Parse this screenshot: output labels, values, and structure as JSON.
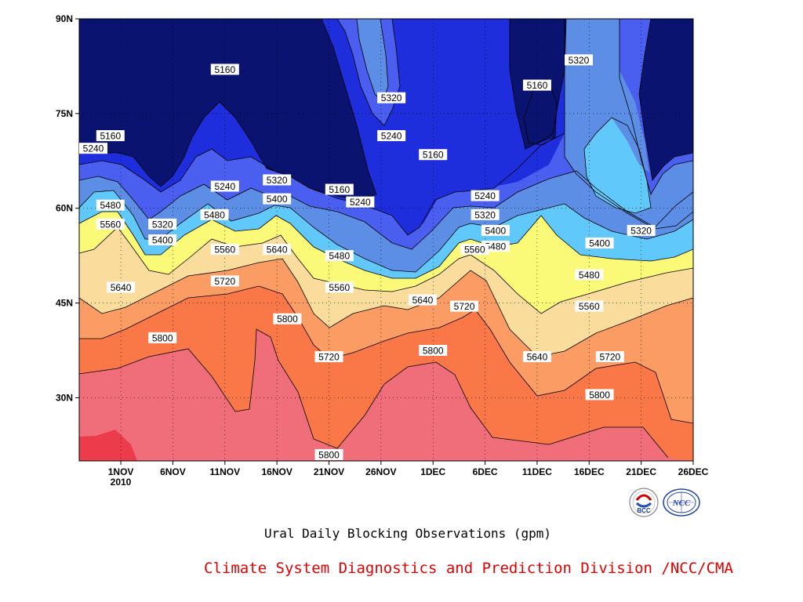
{
  "chart_data": {
    "type": "contour",
    "title": "Ural Daily Blocking Observations (gpm)",
    "credit": "Climate System Diagnostics and Prediction Division /NCC/CMA",
    "x_tick_labels": [
      "1NOV",
      "6NOV",
      "11NOV",
      "16NOV",
      "21NOV",
      "26NOV",
      "1DEC",
      "6DEC",
      "11DEC",
      "16DEC",
      "21DEC",
      "26DEC"
    ],
    "x_year_label": "2010",
    "x_range": [
      "2010-10-28",
      "2010-12-26"
    ],
    "y_tick_labels": [
      "90N",
      "75N",
      "60N",
      "45N",
      "30N"
    ],
    "y_ticks": [
      90,
      75,
      60,
      45,
      30
    ],
    "y_range": [
      20,
      90
    ],
    "grid": true,
    "contour_levels": [
      5160,
      5240,
      5320,
      5400,
      5480,
      5560,
      5640,
      5720,
      5800
    ],
    "colors": {
      "lt5160": "#0a1470",
      "5160": "#1e2edc",
      "5240": "#4a5ef0",
      "5320": "#5c8ee6",
      "5400": "#60c8fa",
      "5480": "#fafa78",
      "5560": "#fadc9c",
      "5640": "#fa9c64",
      "5720": "#fa7848",
      "5800": "#f06e7a",
      "5880": "#ec3c4c"
    },
    "contour_labels": [
      {
        "text": "5240",
        "date": "2010-10-28",
        "lat": 69.5
      },
      {
        "text": "5160",
        "date": "2010-10-31",
        "lat": 71.5
      },
      {
        "text": "5160",
        "date": "2010-11-11",
        "lat": 82
      },
      {
        "text": "5320",
        "date": "2010-11-27",
        "lat": 77.5
      },
      {
        "text": "5240",
        "date": "2010-11-27",
        "lat": 71.5
      },
      {
        "text": "5160",
        "date": "2010-12-01",
        "lat": 68.5
      },
      {
        "text": "5160",
        "date": "2010-12-11",
        "lat": 79.5
      },
      {
        "text": "5320",
        "date": "2010-12-15",
        "lat": 83.5
      },
      {
        "text": "5240",
        "date": "2010-11-11",
        "lat": 63.5
      },
      {
        "text": "5320",
        "date": "2010-11-16",
        "lat": 64.5
      },
      {
        "text": "5400",
        "date": "2010-11-16",
        "lat": 61.5
      },
      {
        "text": "5160",
        "date": "2010-11-22",
        "lat": 63
      },
      {
        "text": "5240",
        "date": "2010-11-24",
        "lat": 61
      },
      {
        "text": "5240",
        "date": "2010-12-06",
        "lat": 62
      },
      {
        "text": "5320",
        "date": "2010-12-06",
        "lat": 59
      },
      {
        "text": "5480",
        "date": "2010-10-31",
        "lat": 60.5
      },
      {
        "text": "5480",
        "date": "2010-11-10",
        "lat": 59
      },
      {
        "text": "5320",
        "date": "2010-11-05",
        "lat": 57.5
      },
      {
        "text": "5400",
        "date": "2010-11-05",
        "lat": 55
      },
      {
        "text": "5560",
        "date": "2010-10-31",
        "lat": 57.5
      },
      {
        "text": "5560",
        "date": "2010-11-11",
        "lat": 53.5
      },
      {
        "text": "5640",
        "date": "2010-11-16",
        "lat": 53.5
      },
      {
        "text": "5400",
        "date": "2010-12-07",
        "lat": 56.5
      },
      {
        "text": "5480",
        "date": "2010-12-07",
        "lat": 54
      },
      {
        "text": "5560",
        "date": "2010-12-05",
        "lat": 53.5
      },
      {
        "text": "5480",
        "date": "2010-11-22",
        "lat": 52.5
      },
      {
        "text": "5400",
        "date": "2010-12-17",
        "lat": 54.5
      },
      {
        "text": "5320",
        "date": "2010-12-21",
        "lat": 56.5
      },
      {
        "text": "5480",
        "date": "2010-12-16",
        "lat": 49.5
      },
      {
        "text": "5640",
        "date": "2010-11-01",
        "lat": 47.5
      },
      {
        "text": "5720",
        "date": "2010-11-11",
        "lat": 48.5
      },
      {
        "text": "5560",
        "date": "2010-11-22",
        "lat": 47.5
      },
      {
        "text": "5640",
        "date": "2010-11-30",
        "lat": 45.5
      },
      {
        "text": "5720",
        "date": "2010-12-04",
        "lat": 44.5
      },
      {
        "text": "5560",
        "date": "2010-12-16",
        "lat": 44.5
      },
      {
        "text": "5800",
        "date": "2010-11-17",
        "lat": 42.5
      },
      {
        "text": "5800",
        "date": "2010-11-05",
        "lat": 39.5
      },
      {
        "text": "5720",
        "date": "2010-11-21",
        "lat": 36.5
      },
      {
        "text": "5800",
        "date": "2010-12-01",
        "lat": 37.5
      },
      {
        "text": "5640",
        "date": "2010-12-11",
        "lat": 36.5
      },
      {
        "text": "5720",
        "date": "2010-12-18",
        "lat": 36.5
      },
      {
        "text": "5800",
        "date": "2010-12-17",
        "lat": 30.5
      },
      {
        "text": "5800",
        "date": "2010-11-21",
        "lat": 21
      }
    ]
  },
  "logos": {
    "bcc": {
      "text": "BCC"
    },
    "ncc": {
      "text": "NCC"
    }
  }
}
